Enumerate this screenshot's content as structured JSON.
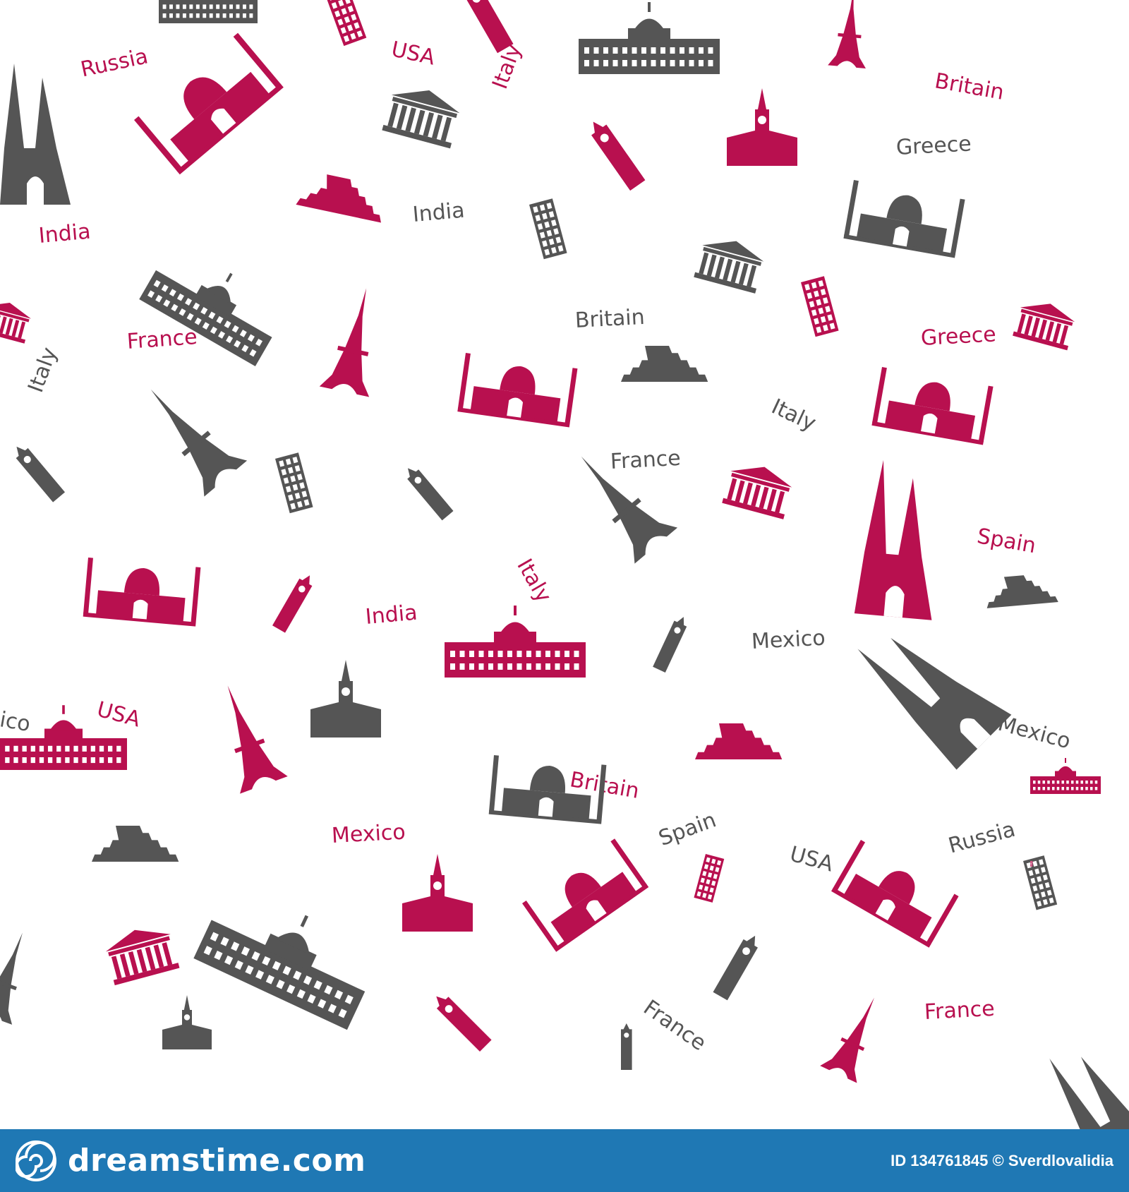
{
  "colors": {
    "magenta": "#b8104f",
    "gray": "#555555",
    "footer_bg": "#1f78b4"
  },
  "pattern": {
    "words": [
      {
        "text": "Russia",
        "color": "magenta",
        "rot": -12
      },
      {
        "text": "USA",
        "color": "magenta",
        "rot": 12
      },
      {
        "text": "Italy",
        "color": "magenta",
        "rot": -70
      },
      {
        "text": "Britain",
        "color": "magenta",
        "rot": 10
      },
      {
        "text": "Greece",
        "color": "gray",
        "rot": -3
      },
      {
        "text": "India",
        "color": "magenta",
        "rot": -5
      },
      {
        "text": "India",
        "color": "gray",
        "rot": -5
      },
      {
        "text": "France",
        "color": "magenta",
        "rot": -4
      },
      {
        "text": "Britain",
        "color": "gray",
        "rot": -3
      },
      {
        "text": "Greece",
        "color": "magenta",
        "rot": -3
      },
      {
        "text": "Italy",
        "color": "gray",
        "rot": -70
      },
      {
        "text": "Italy",
        "color": "gray",
        "rot": 25
      },
      {
        "text": "France",
        "color": "gray",
        "rot": -3
      },
      {
        "text": "Spain",
        "color": "magenta",
        "rot": 10
      },
      {
        "text": "Italy",
        "color": "magenta",
        "rot": 60
      },
      {
        "text": "India",
        "color": "magenta",
        "rot": -5
      },
      {
        "text": "Mexico",
        "color": "gray",
        "rot": -3
      },
      {
        "text": "USA",
        "color": "magenta",
        "rot": 15
      },
      {
        "text": "Mexico",
        "color": "gray",
        "rot": 15
      },
      {
        "text": "Britain",
        "color": "magenta",
        "rot": 10
      },
      {
        "text": "Mexico",
        "color": "magenta",
        "rot": -3
      },
      {
        "text": "Spain",
        "color": "gray",
        "rot": -20
      },
      {
        "text": "USA",
        "color": "gray",
        "rot": 15
      },
      {
        "text": "Russia",
        "color": "gray",
        "rot": -15
      },
      {
        "text": "France",
        "color": "gray",
        "rot": 35
      },
      {
        "text": "France",
        "color": "magenta",
        "rot": -3
      },
      {
        "text": "ico",
        "color": "gray",
        "rot": 10
      }
    ],
    "landmarks": [
      {
        "kind": "capitol",
        "color": "gray"
      },
      {
        "kind": "pisa-tower",
        "color": "magenta"
      },
      {
        "kind": "big-ben",
        "color": "magenta"
      },
      {
        "kind": "capitol",
        "color": "gray"
      },
      {
        "kind": "eiffel-tower",
        "color": "magenta"
      },
      {
        "kind": "cathedral",
        "color": "gray"
      },
      {
        "kind": "taj-mahal",
        "color": "magenta"
      },
      {
        "kind": "greek-temple",
        "color": "gray"
      },
      {
        "kind": "big-ben",
        "color": "magenta"
      },
      {
        "kind": "kremlin",
        "color": "magenta"
      },
      {
        "kind": "pyramid",
        "color": "magenta"
      },
      {
        "kind": "pisa-tower",
        "color": "gray"
      },
      {
        "kind": "taj-mahal",
        "color": "gray"
      },
      {
        "kind": "greek-temple",
        "color": "gray"
      },
      {
        "kind": "capitol",
        "color": "gray"
      },
      {
        "kind": "greek-temple",
        "color": "magenta"
      },
      {
        "kind": "pisa-tower",
        "color": "magenta"
      },
      {
        "kind": "eiffel-tower",
        "color": "magenta"
      },
      {
        "kind": "taj-mahal",
        "color": "magenta"
      },
      {
        "kind": "pyramid",
        "color": "gray"
      },
      {
        "kind": "taj-mahal",
        "color": "magenta"
      },
      {
        "kind": "greek-temple",
        "color": "magenta"
      },
      {
        "kind": "eiffel-tower",
        "color": "gray"
      },
      {
        "kind": "big-ben",
        "color": "gray"
      },
      {
        "kind": "pisa-tower",
        "color": "gray"
      },
      {
        "kind": "big-ben",
        "color": "gray"
      },
      {
        "kind": "eiffel-tower",
        "color": "gray"
      },
      {
        "kind": "greek-temple",
        "color": "magenta"
      },
      {
        "kind": "cathedral",
        "color": "magenta"
      },
      {
        "kind": "taj-mahal",
        "color": "magenta"
      },
      {
        "kind": "big-ben",
        "color": "magenta"
      },
      {
        "kind": "capitol",
        "color": "magenta"
      },
      {
        "kind": "big-ben",
        "color": "gray"
      },
      {
        "kind": "pyramid",
        "color": "gray"
      },
      {
        "kind": "capitol",
        "color": "magenta"
      },
      {
        "kind": "eiffel-tower",
        "color": "magenta"
      },
      {
        "kind": "kremlin",
        "color": "gray"
      },
      {
        "kind": "pyramid",
        "color": "magenta"
      },
      {
        "kind": "cathedral",
        "color": "gray"
      },
      {
        "kind": "taj-mahal",
        "color": "gray"
      },
      {
        "kind": "pyramid",
        "color": "gray"
      },
      {
        "kind": "capitol",
        "color": "gray"
      },
      {
        "kind": "kremlin",
        "color": "magenta"
      },
      {
        "kind": "pisa-tower",
        "color": "magenta"
      },
      {
        "kind": "taj-mahal",
        "color": "magenta"
      },
      {
        "kind": "taj-mahal",
        "color": "magenta"
      },
      {
        "kind": "pisa-tower",
        "color": "gray"
      },
      {
        "kind": "greek-temple",
        "color": "magenta"
      },
      {
        "kind": "big-ben",
        "color": "gray"
      },
      {
        "kind": "eiffel-tower",
        "color": "gray"
      },
      {
        "kind": "kremlin",
        "color": "gray"
      },
      {
        "kind": "big-ben",
        "color": "magenta"
      },
      {
        "kind": "eiffel-tower",
        "color": "magenta"
      },
      {
        "kind": "big-ben",
        "color": "gray"
      },
      {
        "kind": "cathedral",
        "color": "gray"
      },
      {
        "kind": "capitol",
        "color": "magenta"
      },
      {
        "kind": "pisa-tower",
        "color": "magenta"
      }
    ]
  },
  "footer": {
    "brand": "dreamstime.com",
    "credit": "ID 134761845 © Sverdlovalidia"
  }
}
